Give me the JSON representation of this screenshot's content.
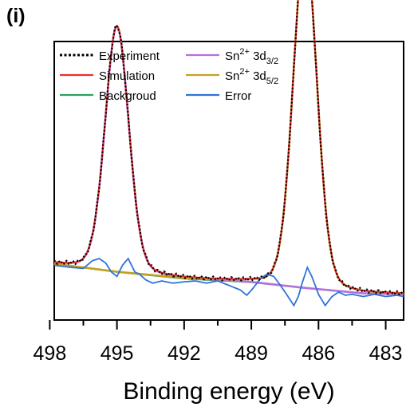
{
  "panel_label": "(i)",
  "chart_data": {
    "type": "line",
    "title": "",
    "xlabel": "Binding energy (eV)",
    "ylabel": "",
    "xlim": [
      497.8,
      482.2
    ],
    "ylim": [
      0,
      1
    ],
    "x_reversed": true,
    "x_ticks": [
      498,
      495,
      492,
      489,
      486,
      483
    ],
    "y_tick_labels_shown": false,
    "grid": false,
    "legend": {
      "position": "top-left",
      "columns": 2,
      "entries": [
        {
          "series": "experiment",
          "text": "Experiment"
        },
        {
          "series": "simulation",
          "text": "Simulation"
        },
        {
          "series": "background",
          "text": "Backgroud"
        },
        {
          "series": "sn_3d32",
          "base": "Sn",
          "sup": "2+",
          "mid": " 3d",
          "sub": "3/2"
        },
        {
          "series": "sn_3d52",
          "base": "Sn",
          "sup": "2+",
          "mid": " 3d",
          "sub": "5/2"
        },
        {
          "series": "error",
          "text": "Error"
        }
      ]
    },
    "colors": {
      "experiment": "#000000",
      "simulation": "#e8312f",
      "background": "#2ca25f",
      "sn_3d32": "#b570e0",
      "sn_3d52": "#c4a020",
      "error": "#2f73d8"
    },
    "peaks": [
      {
        "label": "Sn2+ 3d3/2",
        "center_eV": 495.0,
        "fwhm_eV": 1.25,
        "height": 0.55
      },
      {
        "label": "Sn2+ 3d5/2",
        "center_eV": 486.6,
        "fwhm_eV": 1.25,
        "height": 0.77
      }
    ],
    "background_points": {
      "x": [
        497.8,
        495.0,
        492.0,
        489.0,
        486.6,
        484.0,
        482.2
      ],
      "y": [
        0.088,
        0.07,
        0.055,
        0.047,
        0.034,
        0.022,
        0.02
      ]
    },
    "error_points": {
      "x": [
        497.8,
        497.0,
        496.5,
        496.1,
        495.8,
        495.5,
        495.25,
        495.0,
        494.75,
        494.5,
        494.2,
        494.0,
        493.7,
        493.4,
        493.0,
        492.5,
        492.0,
        491.5,
        491.0,
        490.5,
        490.0,
        489.5,
        489.2,
        488.9,
        488.6,
        488.3,
        488.0,
        487.7,
        487.4,
        487.1,
        486.9,
        486.7,
        486.5,
        486.3,
        486.0,
        485.7,
        485.4,
        485.1,
        484.8,
        484.5,
        484.0,
        483.5,
        483.0,
        482.5,
        482.2
      ],
      "y": [
        0.085,
        0.08,
        0.078,
        0.095,
        0.1,
        0.09,
        0.07,
        0.06,
        0.085,
        0.1,
        0.07,
        0.065,
        0.052,
        0.045,
        0.05,
        0.045,
        0.048,
        0.05,
        0.045,
        0.05,
        0.04,
        0.03,
        0.018,
        0.035,
        0.055,
        0.065,
        0.06,
        0.04,
        0.018,
        -0.005,
        0.015,
        0.05,
        0.08,
        0.06,
        0.02,
        -0.005,
        0.015,
        0.025,
        0.018,
        0.02,
        0.015,
        0.02,
        0.015,
        0.018,
        0.015
      ]
    }
  }
}
